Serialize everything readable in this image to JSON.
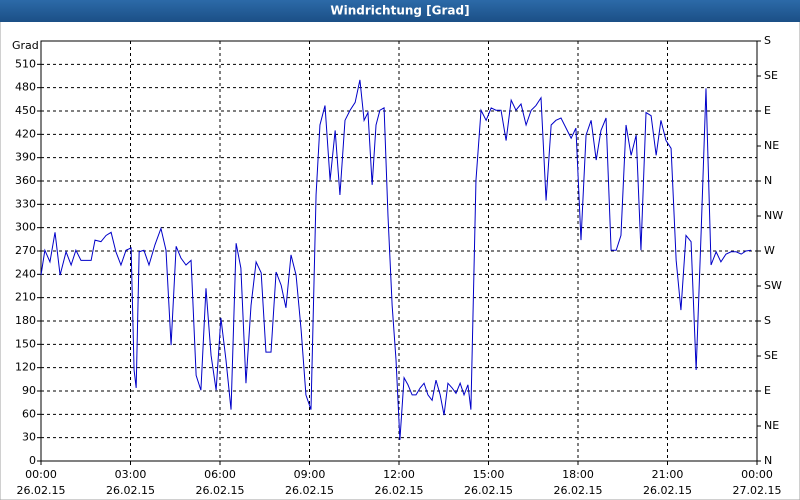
{
  "chart_data": {
    "type": "line",
    "title": "Windrichtung [Grad]",
    "y_label": "Grad",
    "xlim": [
      0,
      24
    ],
    "xticks": [
      {
        "value": 0,
        "label": "00:00",
        "date": "26.02.15"
      },
      {
        "value": 3,
        "label": "03:00",
        "date": "26.02.15"
      },
      {
        "value": 6,
        "label": "06:00",
        "date": "26.02.15"
      },
      {
        "value": 9,
        "label": "09:00",
        "date": "26.02.15"
      },
      {
        "value": 12,
        "label": "12:00",
        "date": "26.02.15"
      },
      {
        "value": 15,
        "label": "15:00",
        "date": "26.02.15"
      },
      {
        "value": 18,
        "label": "18:00",
        "date": "26.02.15"
      },
      {
        "value": 21,
        "label": "21:00",
        "date": "26.02.15"
      },
      {
        "value": 24,
        "label": "00:00",
        "date": "27.02.15"
      }
    ],
    "ylim": [
      0,
      540
    ],
    "yticks": [
      0,
      30,
      60,
      90,
      120,
      150,
      180,
      210,
      240,
      270,
      300,
      330,
      360,
      390,
      420,
      450,
      480,
      510
    ],
    "y2lim": [
      0,
      540
    ],
    "y2ticks": [
      {
        "value": 0,
        "label": "N"
      },
      {
        "value": 45,
        "label": "NE"
      },
      {
        "value": 90,
        "label": "E"
      },
      {
        "value": 135,
        "label": "SE"
      },
      {
        "value": 180,
        "label": "S"
      },
      {
        "value": 225,
        "label": "SW"
      },
      {
        "value": 270,
        "label": "W"
      },
      {
        "value": 315,
        "label": "NW"
      },
      {
        "value": 360,
        "label": "N"
      },
      {
        "value": 405,
        "label": "NE"
      },
      {
        "value": 450,
        "label": "E"
      },
      {
        "value": 495,
        "label": "SE"
      },
      {
        "value": 540,
        "label": "S"
      }
    ],
    "grid": true,
    "x": [
      0,
      0.13,
      0.3,
      0.47,
      0.64,
      0.84,
      1.01,
      1.17,
      1.34,
      1.68,
      1.81,
      2.01,
      2.18,
      2.35,
      2.51,
      2.68,
      2.85,
      3.02,
      3.12,
      3.19,
      3.29,
      3.45,
      3.62,
      3.82,
      4.02,
      4.19,
      4.36,
      4.53,
      4.69,
      4.86,
      5.03,
      5.2,
      5.36,
      5.53,
      5.7,
      5.87,
      6.03,
      6.2,
      6.37,
      6.54,
      6.7,
      6.87,
      7.04,
      7.21,
      7.38,
      7.54,
      7.71,
      7.88,
      8.05,
      8.21,
      8.38,
      8.55,
      8.72,
      8.88,
      9.05,
      9.22,
      9.35,
      9.52,
      9.69,
      9.86,
      10.02,
      10.19,
      10.36,
      10.53,
      10.69,
      10.83,
      10.96,
      11.1,
      11.23,
      11.36,
      11.5,
      11.63,
      11.77,
      11.9,
      12.03,
      12.17,
      12.3,
      12.44,
      12.57,
      12.71,
      12.84,
      12.97,
      13.11,
      13.24,
      13.38,
      13.51,
      13.64,
      13.78,
      13.91,
      14.05,
      14.18,
      14.31,
      14.41,
      14.58,
      14.75,
      14.92,
      15.09,
      15.25,
      15.42,
      15.59,
      15.76,
      15.92,
      16.09,
      16.26,
      16.43,
      16.59,
      16.76,
      16.93,
      17.1,
      17.26,
      17.43,
      17.6,
      17.77,
      17.93,
      18.1,
      18.27,
      18.44,
      18.61,
      18.77,
      18.94,
      19.11,
      19.28,
      19.44,
      19.61,
      19.78,
      19.95,
      20.11,
      20.28,
      20.45,
      20.62,
      20.78,
      20.95,
      21.12,
      21.29,
      21.45,
      21.62,
      21.79,
      21.96,
      22.13,
      22.29,
      22.46,
      22.63,
      22.79,
      22.96,
      23.13,
      23.3,
      23.47,
      23.63,
      23.8
    ],
    "series": [
      {
        "color": "#0000c8",
        "values": [
          239,
          271,
          256,
          294,
          239,
          269,
          252,
          271,
          258,
          258,
          284,
          282,
          290,
          294,
          269,
          252,
          271,
          274,
          117,
          94,
          269,
          271,
          252,
          278,
          299,
          271,
          149,
          276,
          261,
          252,
          258,
          110,
          91,
          222,
          136,
          91,
          184,
          130,
          66,
          280,
          248,
          100,
          200,
          256,
          242,
          140,
          140,
          243,
          226,
          197,
          265,
          239,
          168,
          85,
          66,
          342,
          432,
          457,
          361,
          425,
          342,
          438,
          451,
          461,
          490,
          438,
          448,
          355,
          432,
          451,
          454,
          316,
          200,
          130,
          27,
          107,
          98,
          85,
          85,
          94,
          100,
          85,
          78,
          104,
          85,
          59,
          100,
          94,
          87,
          100,
          85,
          98,
          66,
          361,
          451,
          438,
          454,
          451,
          451,
          412,
          464,
          451,
          459,
          432,
          451,
          457,
          467,
          335,
          432,
          438,
          441,
          428,
          415,
          428,
          284,
          419,
          438,
          387,
          425,
          441,
          271,
          271,
          290,
          432,
          393,
          419,
          271,
          448,
          444,
          393,
          438,
          412,
          402,
          258,
          194,
          290,
          282,
          117,
          297,
          479,
          252,
          269,
          256,
          266,
          269,
          269,
          266,
          270,
          271
        ]
      }
    ]
  }
}
